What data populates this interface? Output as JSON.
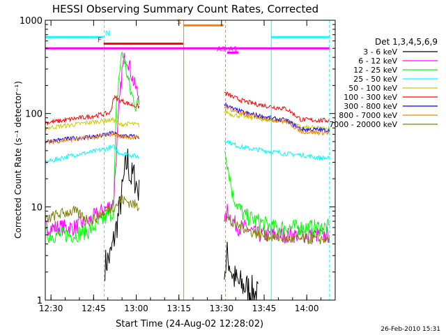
{
  "chart_data": {
    "type": "line",
    "title": "HESSI Observing Summary Count Rates, Corrected",
    "xlabel": "Start Time (24-Aug-02 12:28:02)",
    "ylabel": "Corrected Count Rate (s⁻¹ detector⁻¹)",
    "yscale": "log",
    "ylim": [
      1,
      1000
    ],
    "xlim_minutes": [
      0,
      102
    ],
    "x_tick_labels": [
      "12:30",
      "12:45",
      "13:00",
      "13:15",
      "13:30",
      "13:45",
      "14:00"
    ],
    "x_tick_minutes": [
      2,
      17,
      32,
      47,
      62,
      77,
      92
    ],
    "y_tick_labels": [
      "1",
      "10",
      "100",
      "1000"
    ],
    "y_tick_values": [
      1,
      10,
      100,
      1000
    ],
    "legend_title": "Det 1,3,4,5,6,9",
    "legend_position": "right",
    "timestamp": "26-Feb-2010 15:31",
    "series": [
      {
        "name": "3 - 6 keV",
        "color": "#000000"
      },
      {
        "name": "6 - 12 keV",
        "color": "#ff00ff"
      },
      {
        "name": "12 - 25 keV",
        "color": "#00ff00"
      },
      {
        "name": "25 - 50 keV",
        "color": "#00ffff"
      },
      {
        "name": "50 - 100 keV",
        "color": "#cccc00"
      },
      {
        "name": "100 - 300 keV",
        "color": "#ff0000"
      },
      {
        "name": "300 - 800 keV",
        "color": "#0000ff"
      },
      {
        "name": "800 - 7000 keV",
        "color": "#ff8000"
      },
      {
        "name": "7000 - 20000 keV",
        "color": "#808000"
      }
    ],
    "segments": [
      {
        "start": 0,
        "end": 33
      },
      {
        "start": 63,
        "end": 100
      }
    ],
    "series_points": [
      [
        [
          21,
          2.4
        ],
        [
          23,
          3
        ],
        [
          25,
          6
        ],
        [
          26,
          9
        ],
        [
          27,
          14
        ],
        [
          28,
          24
        ],
        [
          29,
          32
        ],
        [
          30,
          20
        ],
        [
          31,
          22
        ],
        [
          32,
          18
        ],
        [
          33,
          14
        ],
        [
          34,
          20
        ],
        [
          36,
          11
        ],
        [
          38,
          15
        ],
        [
          40,
          12
        ],
        [
          42,
          10
        ],
        [
          43,
          8
        ],
        [
          45,
          7
        ],
        [
          46,
          10
        ],
        [
          47,
          15
        ],
        [
          48,
          20
        ],
        [
          48.7,
          22
        ],
        [
          63.5,
          2.2
        ],
        [
          64,
          3
        ],
        [
          65,
          2.4
        ],
        [
          66,
          1.8
        ],
        [
          68,
          1.5
        ],
        [
          70,
          1.4
        ],
        [
          72,
          1.3
        ],
        [
          75,
          1.1
        ]
      ],
      [
        [
          0,
          6
        ],
        [
          5,
          6
        ],
        [
          10,
          6
        ],
        [
          15,
          7
        ],
        [
          20,
          9
        ],
        [
          24,
          11
        ],
        [
          26,
          120
        ],
        [
          27,
          280
        ],
        [
          28,
          420
        ],
        [
          29,
          380
        ],
        [
          31,
          220
        ],
        [
          33,
          150
        ],
        [
          35,
          340
        ],
        [
          37,
          280
        ],
        [
          40,
          220
        ],
        [
          42,
          230
        ],
        [
          43,
          310
        ],
        [
          45,
          180
        ],
        [
          47,
          110
        ],
        [
          48.7,
          160
        ],
        [
          63.5,
          7
        ],
        [
          64,
          9
        ],
        [
          66,
          7
        ],
        [
          68,
          6
        ],
        [
          70,
          6
        ],
        [
          75,
          5
        ],
        [
          80,
          5
        ],
        [
          85,
          5
        ],
        [
          90,
          5
        ],
        [
          95,
          5
        ],
        [
          100,
          5
        ]
      ],
      [
        [
          0,
          5
        ],
        [
          5,
          5
        ],
        [
          10,
          5
        ],
        [
          15,
          5.5
        ],
        [
          20,
          7
        ],
        [
          24,
          9
        ],
        [
          25,
          110
        ],
        [
          26,
          260
        ],
        [
          27,
          450
        ],
        [
          28,
          350
        ],
        [
          30,
          170
        ],
        [
          32,
          120
        ],
        [
          34,
          150
        ],
        [
          35,
          240
        ],
        [
          37,
          170
        ],
        [
          40,
          120
        ],
        [
          42,
          160
        ],
        [
          44,
          95
        ],
        [
          46,
          40
        ],
        [
          47,
          25
        ],
        [
          48,
          28
        ],
        [
          48.7,
          130
        ],
        [
          63.5,
          40
        ],
        [
          64,
          30
        ],
        [
          65,
          20
        ],
        [
          66,
          13
        ],
        [
          68,
          10
        ],
        [
          70,
          8
        ],
        [
          75,
          7
        ],
        [
          80,
          6
        ],
        [
          85,
          6
        ],
        [
          90,
          6
        ],
        [
          95,
          6
        ],
        [
          100,
          6
        ]
      ],
      [
        [
          0,
          30
        ],
        [
          5,
          33
        ],
        [
          10,
          36
        ],
        [
          15,
          38
        ],
        [
          20,
          41
        ],
        [
          24,
          44
        ],
        [
          26,
          38
        ],
        [
          30,
          36
        ],
        [
          35,
          33
        ],
        [
          40,
          32
        ],
        [
          45,
          29
        ],
        [
          47,
          30
        ],
        [
          48.7,
          34
        ],
        [
          63.5,
          52
        ],
        [
          66,
          47
        ],
        [
          70,
          43
        ],
        [
          75,
          41
        ],
        [
          80,
          39
        ],
        [
          85,
          37
        ],
        [
          90,
          36
        ],
        [
          95,
          34
        ],
        [
          100,
          33
        ]
      ],
      [
        [
          0,
          70
        ],
        [
          5,
          73
        ],
        [
          10,
          76
        ],
        [
          15,
          80
        ],
        [
          20,
          83
        ],
        [
          24,
          86
        ],
        [
          26,
          76
        ],
        [
          30,
          78
        ],
        [
          35,
          73
        ],
        [
          40,
          71
        ],
        [
          45,
          67
        ],
        [
          48.7,
          68
        ],
        [
          63.5,
          105
        ],
        [
          66,
          97
        ],
        [
          70,
          93
        ],
        [
          75,
          88
        ],
        [
          80,
          84
        ],
        [
          85,
          82
        ],
        [
          90,
          71
        ],
        [
          95,
          70
        ],
        [
          100,
          69
        ]
      ],
      [
        [
          0,
          80
        ],
        [
          5,
          83
        ],
        [
          10,
          88
        ],
        [
          15,
          92
        ],
        [
          20,
          98
        ],
        [
          23,
          102
        ],
        [
          24,
          150
        ],
        [
          26,
          140
        ],
        [
          30,
          125
        ],
        [
          35,
          115
        ],
        [
          40,
          100
        ],
        [
          45,
          88
        ],
        [
          48,
          110
        ],
        [
          48.7,
          250
        ],
        [
          63.5,
          165
        ],
        [
          66,
          150
        ],
        [
          70,
          135
        ],
        [
          75,
          125
        ],
        [
          80,
          118
        ],
        [
          85,
          112
        ],
        [
          90,
          86
        ],
        [
          95,
          85
        ],
        [
          100,
          84
        ]
      ],
      [
        [
          0,
          50
        ],
        [
          5,
          52
        ],
        [
          10,
          54
        ],
        [
          15,
          56
        ],
        [
          20,
          58
        ],
        [
          24,
          62
        ],
        [
          26,
          58
        ],
        [
          30,
          57
        ],
        [
          35,
          55
        ],
        [
          40,
          52
        ],
        [
          45,
          47
        ],
        [
          48.7,
          50
        ],
        [
          63.5,
          125
        ],
        [
          66,
          112
        ],
        [
          70,
          102
        ],
        [
          75,
          95
        ],
        [
          80,
          88
        ],
        [
          85,
          84
        ],
        [
          90,
          68
        ],
        [
          95,
          67
        ],
        [
          100,
          66
        ]
      ],
      [
        [
          0,
          49
        ],
        [
          5,
          51
        ],
        [
          10,
          53
        ],
        [
          15,
          55
        ],
        [
          20,
          57
        ],
        [
          24,
          61
        ],
        [
          26,
          57
        ],
        [
          30,
          56
        ],
        [
          35,
          54
        ],
        [
          40,
          51
        ],
        [
          45,
          46
        ],
        [
          48.7,
          49
        ],
        [
          63.5,
          120
        ],
        [
          66,
          108
        ],
        [
          70,
          98
        ],
        [
          75,
          92
        ],
        [
          80,
          86
        ],
        [
          85,
          82
        ],
        [
          90,
          64
        ],
        [
          95,
          63
        ],
        [
          100,
          62
        ]
      ],
      [
        [
          0,
          7
        ],
        [
          3,
          8
        ],
        [
          6,
          8.5
        ],
        [
          10,
          9
        ],
        [
          13,
          8
        ],
        [
          16,
          7
        ],
        [
          20,
          8.5
        ],
        [
          24,
          10
        ],
        [
          27,
          12
        ],
        [
          30,
          11
        ],
        [
          33,
          10
        ],
        [
          36,
          8
        ],
        [
          40,
          7
        ],
        [
          44,
          6
        ],
        [
          46,
          5
        ],
        [
          48,
          6
        ],
        [
          48.7,
          7
        ],
        [
          63.5,
          8
        ],
        [
          66,
          6.5
        ],
        [
          70,
          6
        ],
        [
          72,
          5.5
        ],
        [
          76,
          5
        ],
        [
          80,
          4.8
        ],
        [
          85,
          4.5
        ],
        [
          90,
          4.5
        ],
        [
          95,
          4.5
        ],
        [
          100,
          4.5
        ]
      ]
    ],
    "spikes": {
      "start": 48.7,
      "end": 63.5,
      "color": "#ff8000"
    },
    "markers": [
      {
        "label": "N",
        "color": "#00ffff",
        "start": 0,
        "end": 20.5,
        "y": 660
      },
      {
        "label": "N",
        "color": "#00ffff",
        "start": 79.5,
        "end": 100,
        "y": 660
      },
      {
        "label": "S",
        "color": "#ff8000",
        "start": 48.5,
        "end": 62.7,
        "y": 880
      },
      {
        "label": "F",
        "color": "#ff0000",
        "start": 20.5,
        "end": 48.5,
        "y": 560
      },
      {
        "label": "",
        "color": "#ff00ff",
        "start": 0,
        "end": 100,
        "y": 500
      },
      {
        "label": "A1",
        "color": "#ff00ff",
        "start": 64,
        "end": 68,
        "y": 450
      },
      {
        "label": "A3",
        "color": "#ff00ff",
        "start": 64,
        "end": 64,
        "y": 450
      }
    ],
    "vlines": [
      {
        "minute": 20.7,
        "color": "#00ffff",
        "dashed": true
      },
      {
        "minute": 48.7,
        "color": "#ff8000",
        "dashed": false
      },
      {
        "minute": 63.4,
        "color": "#ff8000",
        "dashed": true
      },
      {
        "minute": 79.5,
        "color": "#00ffff",
        "dashed": false
      },
      {
        "minute": 100,
        "color": "#00ffff",
        "dashed": true
      }
    ]
  }
}
